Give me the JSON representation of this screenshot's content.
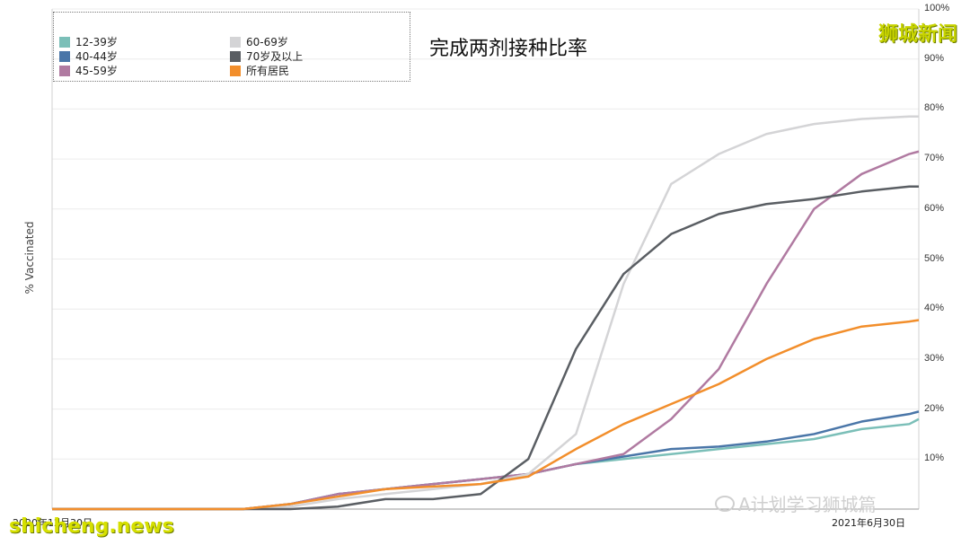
{
  "brand": "狮城新闻",
  "watermark_site": "shicheng.news",
  "watermark_wechat": "A计划学习狮城篇",
  "chart_data": {
    "type": "line",
    "title": "完成两剂接种比率",
    "ylabel": "% Vaccinated",
    "ylim": [
      0,
      100
    ],
    "y_ticks": [
      "10%",
      "20%",
      "30%",
      "40%",
      "50%",
      "60%",
      "70%",
      "80%",
      "90%",
      "100%"
    ],
    "y_ticks_values": [
      10,
      20,
      30,
      40,
      50,
      60,
      70,
      80,
      90,
      100
    ],
    "x_start_label": "2020年12月30日",
    "x_end_label": "2021年6月30日",
    "grid": true,
    "legend_position": "top-left",
    "x": [
      "2020-12-30",
      "2021-01-09",
      "2021-01-19",
      "2021-01-29",
      "2021-02-08",
      "2021-02-18",
      "2021-02-28",
      "2021-03-10",
      "2021-03-20",
      "2021-03-30",
      "2021-04-09",
      "2021-04-19",
      "2021-04-29",
      "2021-05-09",
      "2021-05-19",
      "2021-05-29",
      "2021-06-08",
      "2021-06-18",
      "2021-06-28",
      "2021-06-30"
    ],
    "series": [
      {
        "name": "12-39岁",
        "color": "#7bbfb8",
        "values": [
          0,
          0,
          0,
          0,
          0,
          1,
          3,
          4,
          5,
          6,
          7,
          9,
          10,
          11,
          12,
          13,
          14,
          16,
          17,
          18
        ]
      },
      {
        "name": "40-44岁",
        "color": "#4a76a8",
        "values": [
          0,
          0,
          0,
          0,
          0,
          1,
          3,
          4,
          5,
          6,
          7,
          9,
          10.5,
          12,
          12.5,
          13.5,
          15,
          17.5,
          19,
          19.5
        ]
      },
      {
        "name": "45-59岁",
        "color": "#b07aa1",
        "values": [
          0,
          0,
          0,
          0,
          0,
          1,
          3,
          4,
          5,
          6,
          7,
          9,
          11,
          18,
          28,
          45,
          60,
          67,
          71,
          71.5
        ]
      },
      {
        "name": "60-69岁",
        "color": "#d4d4d6",
        "values": [
          0,
          0,
          0,
          0,
          0,
          0.5,
          2,
          3,
          4,
          5,
          7,
          15,
          45,
          65,
          71,
          75,
          77,
          78,
          78.5,
          78.5
        ]
      },
      {
        "name": "70岁及以上",
        "color": "#5a5e63",
        "values": [
          0,
          0,
          0,
          0,
          0,
          0,
          0.5,
          2,
          2,
          3,
          10,
          32,
          47,
          55,
          59,
          61,
          62,
          63.5,
          64.5,
          64.5
        ]
      },
      {
        "name": "所有居民",
        "color": "#f28e2b",
        "values": [
          0,
          0,
          0,
          0,
          0,
          1,
          2.5,
          4,
          4.5,
          5,
          6.5,
          12,
          17,
          21,
          25,
          30,
          34,
          36.5,
          37.5,
          37.8
        ]
      }
    ]
  }
}
